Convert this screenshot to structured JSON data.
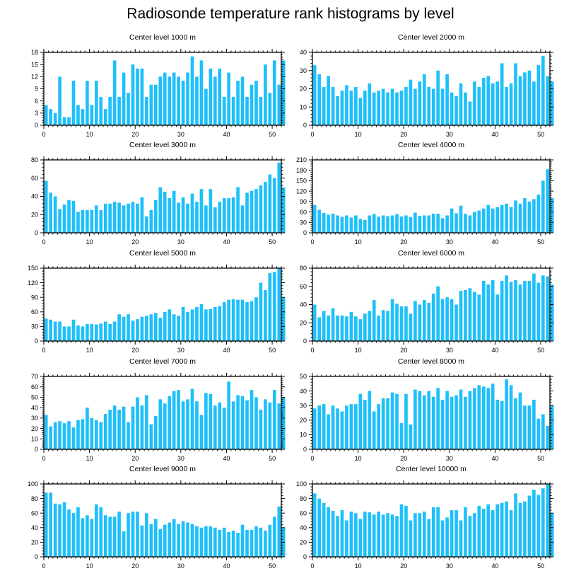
{
  "title": "Radiosonde temperature rank histograms by level",
  "colors": {
    "bar": "#1ec0fa",
    "axis": "#000000",
    "background": "#ffffff"
  },
  "chart_data": [
    {
      "type": "bar",
      "title": "Center level 1000 m",
      "xlim": [
        0,
        52
      ],
      "ylim": [
        0,
        18
      ],
      "xticks": [
        0,
        10,
        20,
        30,
        40,
        50
      ],
      "yticks": [
        0,
        3,
        6,
        9,
        12,
        15,
        18
      ],
      "values": [
        5,
        4,
        3,
        12,
        2,
        2,
        11,
        5,
        4,
        11,
        5,
        11,
        7,
        4,
        7,
        16,
        7,
        13,
        8,
        15,
        14,
        14,
        7,
        10,
        10,
        12,
        13,
        12,
        13,
        12,
        11,
        13,
        17,
        12,
        16,
        9,
        14,
        12,
        14,
        7,
        13,
        7,
        11,
        12,
        7,
        10,
        11,
        7,
        15,
        8,
        16,
        10,
        16
      ]
    },
    {
      "type": "bar",
      "title": "Center level 2000 m",
      "xlim": [
        0,
        52
      ],
      "ylim": [
        0,
        40
      ],
      "xticks": [
        0,
        10,
        20,
        30,
        40,
        50
      ],
      "yticks": [
        0,
        10,
        20,
        30,
        40
      ],
      "values": [
        33,
        28,
        21,
        27,
        21,
        16,
        19,
        22,
        19,
        21,
        15,
        19,
        23,
        18,
        19,
        20,
        18,
        20,
        18,
        19,
        21,
        25,
        20,
        24,
        28,
        21,
        20,
        30,
        20,
        28,
        18,
        16,
        23,
        18,
        13,
        24,
        21,
        26,
        27,
        23,
        24,
        34,
        21,
        23,
        34,
        27,
        29,
        30,
        24,
        33,
        38,
        27,
        24
      ]
    },
    {
      "type": "bar",
      "title": "Center level 3000 m",
      "xlim": [
        0,
        52
      ],
      "ylim": [
        0,
        80
      ],
      "xticks": [
        0,
        10,
        20,
        30,
        40,
        50
      ],
      "yticks": [
        0,
        20,
        40,
        60,
        80
      ],
      "values": [
        57,
        44,
        40,
        26,
        31,
        36,
        35,
        23,
        25,
        25,
        25,
        30,
        25,
        32,
        32,
        34,
        33,
        30,
        32,
        34,
        32,
        39,
        18,
        25,
        36,
        50,
        45,
        38,
        46,
        33,
        39,
        32,
        43,
        34,
        48,
        30,
        48,
        28,
        34,
        38,
        38,
        39,
        50,
        30,
        44,
        46,
        48,
        52,
        56,
        64,
        60,
        77,
        50
      ]
    },
    {
      "type": "bar",
      "title": "Center level 4000 m",
      "xlim": [
        0,
        52
      ],
      "ylim": [
        0,
        210
      ],
      "xticks": [
        0,
        10,
        20,
        30,
        40,
        50
      ],
      "yticks": [
        0,
        30,
        60,
        90,
        120,
        150,
        180,
        210
      ],
      "values": [
        80,
        66,
        57,
        52,
        55,
        50,
        46,
        50,
        44,
        50,
        40,
        37,
        50,
        54,
        46,
        50,
        48,
        50,
        54,
        47,
        50,
        45,
        58,
        49,
        50,
        50,
        55,
        55,
        42,
        50,
        70,
        56,
        78,
        55,
        50,
        60,
        64,
        70,
        80,
        70,
        74,
        80,
        84,
        74,
        93,
        84,
        100,
        90,
        97,
        110,
        150,
        183,
        100
      ]
    },
    {
      "type": "bar",
      "title": "Center level 5000 m",
      "xlim": [
        0,
        52
      ],
      "ylim": [
        0,
        150
      ],
      "xticks": [
        0,
        10,
        20,
        30,
        40,
        50
      ],
      "yticks": [
        0,
        30,
        60,
        90,
        120,
        150
      ],
      "values": [
        46,
        44,
        40,
        40,
        30,
        30,
        44,
        32,
        30,
        35,
        35,
        34,
        36,
        40,
        35,
        40,
        55,
        50,
        55,
        42,
        45,
        50,
        52,
        55,
        58,
        48,
        60,
        65,
        55,
        52,
        70,
        60,
        65,
        70,
        76,
        65,
        66,
        70,
        72,
        80,
        85,
        86,
        85,
        85,
        80,
        82,
        90,
        120,
        105,
        140,
        142,
        150,
        90
      ]
    },
    {
      "type": "bar",
      "title": "Center level 6000 m",
      "xlim": [
        0,
        52
      ],
      "ylim": [
        0,
        80
      ],
      "xticks": [
        0,
        10,
        20,
        30,
        40,
        50
      ],
      "yticks": [
        0,
        20,
        40,
        60,
        80
      ],
      "values": [
        40,
        26,
        33,
        28,
        36,
        28,
        28,
        27,
        32,
        27,
        24,
        30,
        33,
        45,
        28,
        34,
        33,
        46,
        41,
        38,
        38,
        30,
        44,
        40,
        45,
        42,
        52,
        60,
        46,
        48,
        46,
        40,
        55,
        56,
        58,
        54,
        51,
        66,
        62,
        67,
        51,
        66,
        72,
        65,
        67,
        62,
        66,
        66,
        74,
        64,
        72,
        71,
        62
      ]
    },
    {
      "type": "bar",
      "title": "Center level 7000 m",
      "xlim": [
        0,
        52
      ],
      "ylim": [
        0,
        70
      ],
      "xticks": [
        0,
        10,
        20,
        30,
        40,
        50
      ],
      "yticks": [
        0,
        10,
        20,
        30,
        40,
        50,
        60,
        70
      ],
      "values": [
        33,
        22,
        26,
        27,
        25,
        27,
        21,
        28,
        29,
        40,
        30,
        28,
        26,
        34,
        38,
        42,
        38,
        41,
        26,
        41,
        50,
        42,
        52,
        24,
        32,
        48,
        44,
        51,
        56,
        57,
        46,
        48,
        58,
        46,
        33,
        54,
        53,
        42,
        45,
        40,
        65,
        46,
        52,
        51,
        47,
        57,
        50,
        38,
        48,
        45,
        57,
        44,
        50
      ]
    },
    {
      "type": "bar",
      "title": "Center level 8000 m",
      "xlim": [
        0,
        52
      ],
      "ylim": [
        0,
        50
      ],
      "xticks": [
        0,
        10,
        20,
        30,
        40,
        50
      ],
      "yticks": [
        0,
        10,
        20,
        30,
        40,
        50
      ],
      "values": [
        28,
        30,
        31,
        24,
        30,
        28,
        26,
        30,
        31,
        31,
        38,
        34,
        40,
        26,
        31,
        35,
        35,
        39,
        38,
        18,
        38,
        17,
        41,
        40,
        37,
        40,
        36,
        42,
        34,
        40,
        36,
        37,
        41,
        36,
        40,
        42,
        44,
        43,
        42,
        45,
        34,
        33,
        48,
        44,
        35,
        39,
        30,
        30,
        34,
        21,
        24,
        16,
        30
      ]
    },
    {
      "type": "bar",
      "title": "Center level 9000 m",
      "xlim": [
        0,
        52
      ],
      "ylim": [
        0,
        100
      ],
      "xticks": [
        0,
        10,
        20,
        30,
        40,
        50
      ],
      "yticks": [
        0,
        20,
        40,
        60,
        80,
        100
      ],
      "values": [
        88,
        88,
        73,
        72,
        75,
        65,
        60,
        68,
        53,
        57,
        52,
        72,
        68,
        57,
        55,
        55,
        62,
        35,
        60,
        62,
        62,
        43,
        60,
        45,
        52,
        38,
        44,
        47,
        52,
        45,
        49,
        47,
        45,
        42,
        40,
        42,
        42,
        40,
        37,
        40,
        34,
        36,
        33,
        44,
        37,
        37,
        42,
        40,
        36,
        44,
        55,
        69,
        40
      ]
    },
    {
      "type": "bar",
      "title": "Center level 10000 m",
      "xlim": [
        0,
        52
      ],
      "ylim": [
        0,
        100
      ],
      "xticks": [
        0,
        10,
        20,
        30,
        40,
        50
      ],
      "yticks": [
        0,
        20,
        40,
        60,
        80,
        100
      ],
      "values": [
        87,
        80,
        74,
        68,
        63,
        56,
        64,
        50,
        62,
        60,
        52,
        62,
        61,
        58,
        62,
        58,
        60,
        58,
        56,
        72,
        70,
        50,
        60,
        60,
        62,
        52,
        68,
        68,
        50,
        54,
        64,
        64,
        50,
        68,
        56,
        60,
        70,
        66,
        72,
        64,
        72,
        74,
        76,
        64,
        87,
        74,
        76,
        84,
        92,
        85,
        94,
        100,
        60
      ]
    }
  ]
}
